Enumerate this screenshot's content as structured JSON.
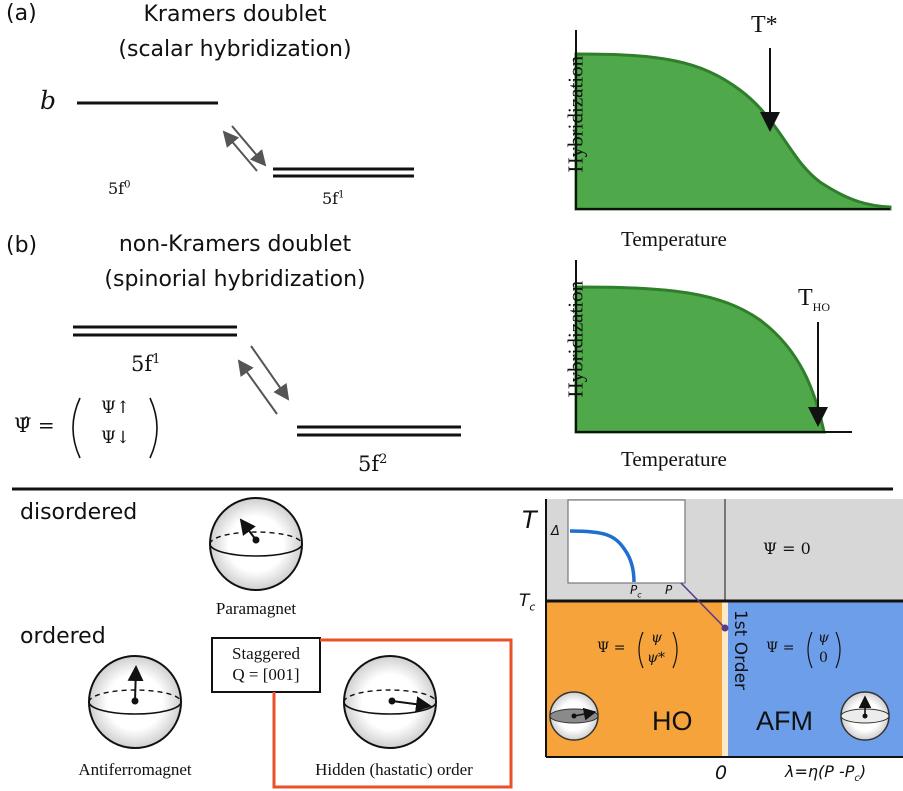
{
  "panel_a": {
    "label": "(a)",
    "title_line1": "Kramers doublet",
    "title_line2": "(scalar hybridization)",
    "level_b": "b",
    "state_left": "5f",
    "state_left_sup": "0",
    "state_right": "5f",
    "state_right_sup": "1"
  },
  "panel_b": {
    "label": "(b)",
    "title_line1": "non-Kramers doublet",
    "title_line2": "(spinorial hybridization)",
    "state_left": "5f",
    "state_left_sup": "1",
    "state_right": "5f",
    "state_right_sup": "2",
    "spinor_lhs": "Ψ̂ =",
    "spinor_up": "Ψ↑",
    "spinor_down": "Ψ↓"
  },
  "chart_data": [
    {
      "type": "area",
      "ylabel": "Hybridization",
      "xlabel": "Temperature",
      "annotation": "T*",
      "shape": "smooth crossover",
      "color": "#4fa84a"
    },
    {
      "type": "area",
      "ylabel": "Hybridization",
      "xlabel": "Temperature",
      "annotation": "T",
      "annotation_sub": "HO",
      "shape": "mean-field order parameter vanishing at transition",
      "color": "#4fa84a"
    }
  ],
  "bottom_left": {
    "disordered": "disordered",
    "ordered": "ordered",
    "paramagnet": "Paramagnet",
    "antiferromagnet": "Antiferromagnet",
    "staggered_line1": "Staggered",
    "staggered_line2": "Q = [001]",
    "hidden_order": "Hidden (hastatic) order",
    "highlight_color": "#e8512a"
  },
  "phase_diagram": {
    "t_axis": "T",
    "tc": "T",
    "tc_sub": "c",
    "psi_zero": "Ψ = 0",
    "psi_ho_lhs": "Ψ =",
    "psi_ho_top": "ψ",
    "psi_ho_bottom": "ψ*",
    "psi_afm_lhs": "Ψ =",
    "psi_afm_top": "ψ",
    "psi_afm_bottom": "0",
    "first_order": "1st Order",
    "ho": "HO",
    "afm": "AFM",
    "zero": "0",
    "lambda": "λ=η(P -P",
    "lambda_sub": "c",
    "lambda_close": ")",
    "inset_delta": "Δ",
    "inset_pc": "P",
    "inset_pc_sub": "c",
    "inset_p": "P",
    "colors": {
      "disordered": "#d7d7d7",
      "ho": "#f5a33a",
      "afm": "#6c9eea",
      "inset_curve": "#1f6fd1"
    }
  }
}
